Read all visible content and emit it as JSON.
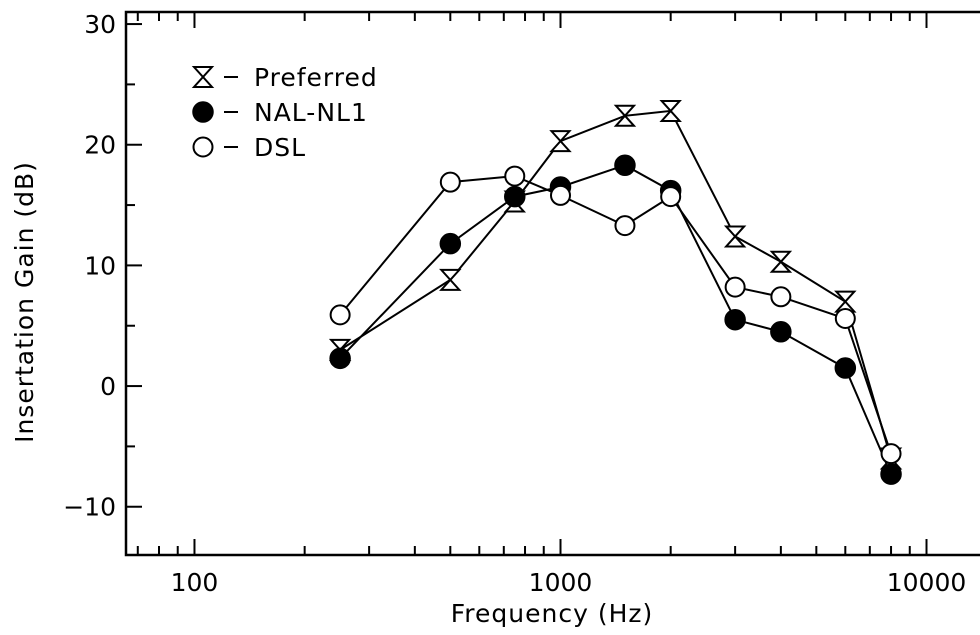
{
  "chart_data": {
    "type": "line",
    "xlabel": "Frequency (Hz)",
    "ylabel": "Insertation Gain (dB)",
    "xscale": "log",
    "xlim": [
      65,
      14000
    ],
    "ylim": [
      -14,
      31
    ],
    "xticks": [
      100,
      1000,
      10000
    ],
    "xtick_labels": [
      "100",
      "1000",
      "10000"
    ],
    "yticks": [
      -10,
      0,
      10,
      20,
      30
    ],
    "ytick_labels": [
      "−10",
      "0",
      "10",
      "20",
      "30"
    ],
    "grid": false,
    "legend_position": "top-left",
    "x": [
      250,
      500,
      750,
      1000,
      1500,
      2000,
      3000,
      4000,
      6000,
      8000
    ],
    "series": [
      {
        "name": "Preferred",
        "marker": "hourglass",
        "values": [
          3.0,
          8.8,
          15.3,
          20.3,
          22.4,
          22.8,
          12.4,
          10.3,
          7.0,
          -6.0
        ]
      },
      {
        "name": "NAL-NL1",
        "marker": "filled-circle",
        "values": [
          2.3,
          11.8,
          15.7,
          16.5,
          18.3,
          16.2,
          5.5,
          4.5,
          1.5,
          -7.3
        ]
      },
      {
        "name": "DSL",
        "marker": "open-circle",
        "values": [
          5.9,
          16.9,
          17.4,
          15.8,
          13.3,
          15.7,
          8.2,
          7.4,
          5.6,
          -5.6
        ]
      }
    ]
  }
}
